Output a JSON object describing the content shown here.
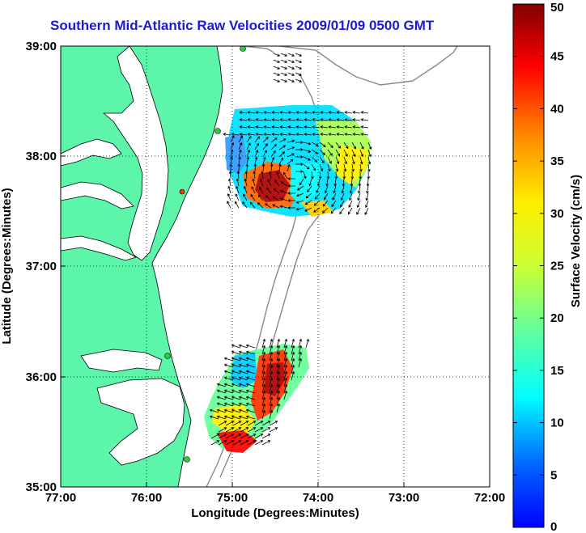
{
  "title": "Southern Mid-Atlantic Raw Velocities 2009/01/09 0500 GMT",
  "x_axis": {
    "label": "Longitude (Degrees:Minutes)",
    "ticks": [
      "77:00",
      "76:00",
      "75:00",
      "74:00",
      "73:00",
      "72:00"
    ]
  },
  "y_axis": {
    "label": "Latitude (Degrees:Minutes)",
    "ticks": [
      "39:00",
      "38:00",
      "37:00",
      "36:00",
      "35:00"
    ]
  },
  "colorbar": {
    "label": "Surface Velocity (cm/s)",
    "ticks": [
      "50",
      "45",
      "40",
      "35",
      "30",
      "25",
      "20",
      "15",
      "10",
      "5",
      "0"
    ],
    "min": 0,
    "max": 50,
    "colormap": "jet"
  },
  "map": {
    "lon_range": [
      -77,
      -72
    ],
    "lat_range": [
      35,
      39
    ],
    "land_color": "#5cf5a9",
    "ocean_color": "#ffffff",
    "grid": "dotted",
    "stations_color": "#2ecc40"
  }
}
